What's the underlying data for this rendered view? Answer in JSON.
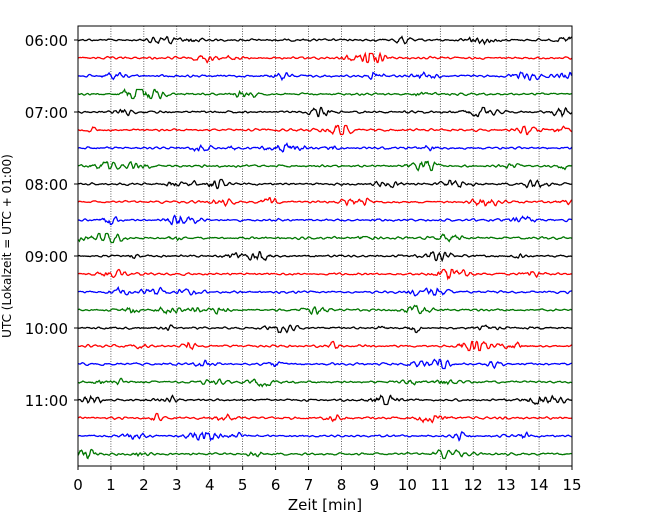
{
  "chart_data": {
    "type": "line",
    "title": "",
    "xlabel": "Zeit  [min]",
    "ylabel": "UTC (Lokalzeit = UTC + 01:00)",
    "xlim": [
      0,
      15
    ],
    "x_ticks": [
      "0",
      "1",
      "2",
      "3",
      "4",
      "5",
      "6",
      "7",
      "8",
      "9",
      "10",
      "11",
      "12",
      "13",
      "14",
      "15"
    ],
    "y_ticks": [
      "06:00",
      "07:00",
      "08:00",
      "09:00",
      "10:00",
      "11:00"
    ],
    "grid": "vertical dotted lines at each minute",
    "legend": "none",
    "trace_interval_min": 15,
    "trace_colors": [
      "#000000",
      "#ff0000",
      "#0000ff",
      "#007700"
    ],
    "traces": [
      {
        "start": "06:00"
      },
      {
        "start": "06:15"
      },
      {
        "start": "06:30"
      },
      {
        "start": "06:45"
      },
      {
        "start": "07:00"
      },
      {
        "start": "07:15"
      },
      {
        "start": "07:30"
      },
      {
        "start": "07:45"
      },
      {
        "start": "08:00"
      },
      {
        "start": "08:15"
      },
      {
        "start": "08:30"
      },
      {
        "start": "08:45"
      },
      {
        "start": "09:00"
      },
      {
        "start": "09:15"
      },
      {
        "start": "09:30"
      },
      {
        "start": "09:45"
      },
      {
        "start": "10:00"
      },
      {
        "start": "10:15"
      },
      {
        "start": "10:30"
      },
      {
        "start": "10:45"
      },
      {
        "start": "11:00"
      },
      {
        "start": "11:15"
      },
      {
        "start": "11:30"
      },
      {
        "start": "11:45"
      }
    ]
  }
}
